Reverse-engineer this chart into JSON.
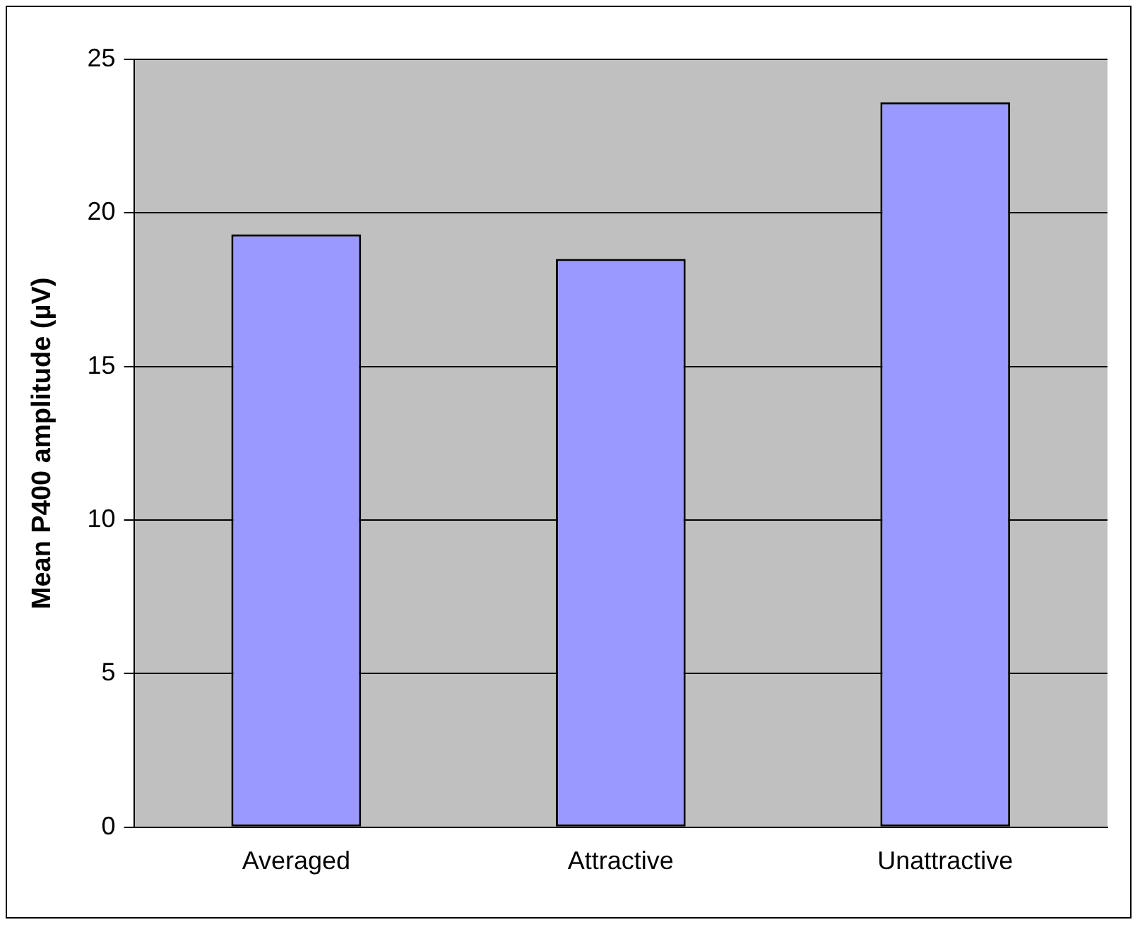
{
  "chart_data": {
    "type": "bar",
    "ylabel": "Mean P400 amplitude (µV)",
    "categories": [
      "Averaged",
      "Attractive",
      "Unattractive"
    ],
    "values": [
      19.3,
      18.5,
      23.6
    ],
    "color": "#9999ff",
    "ylim": [
      0,
      25
    ],
    "yticks": [
      0,
      5,
      10,
      15,
      20,
      25
    ],
    "grid": "y",
    "legend": false
  }
}
